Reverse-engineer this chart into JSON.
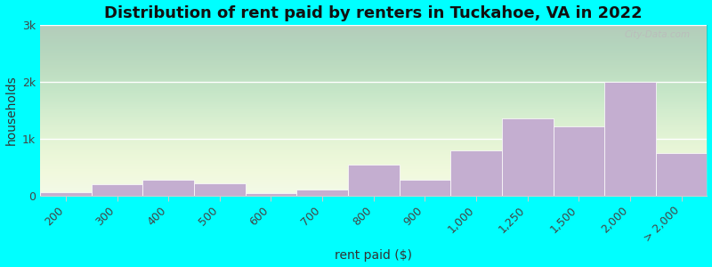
{
  "bin_labels": [
    "200",
    "300",
    "400",
    "500",
    "600",
    "700",
    "800",
    "900",
    "1,000",
    "1,250",
    "1,500",
    "2,000",
    "> 2,000"
  ],
  "values": [
    50,
    200,
    270,
    210,
    45,
    110,
    540,
    270,
    800,
    1350,
    1220,
    2000,
    750
  ],
  "bar_color": "#c4aed0",
  "bar_edgecolor": "#ffffff",
  "background_color": "#00ffff",
  "plot_bg_color_top": "#dff0d8",
  "plot_bg_color_bottom": "#f5fbf0",
  "title": "Distribution of rent paid by renters in Tuckahoe, VA in 2022",
  "xlabel": "rent paid ($)",
  "ylabel": "households",
  "ylim": [
    0,
    3000
  ],
  "yticks": [
    0,
    1000,
    2000,
    3000
  ],
  "ytick_labels": [
    "0",
    "1k",
    "2k",
    "3k"
  ],
  "title_fontsize": 13,
  "axis_label_fontsize": 10,
  "tick_fontsize": 9,
  "watermark": "City-Data.com"
}
